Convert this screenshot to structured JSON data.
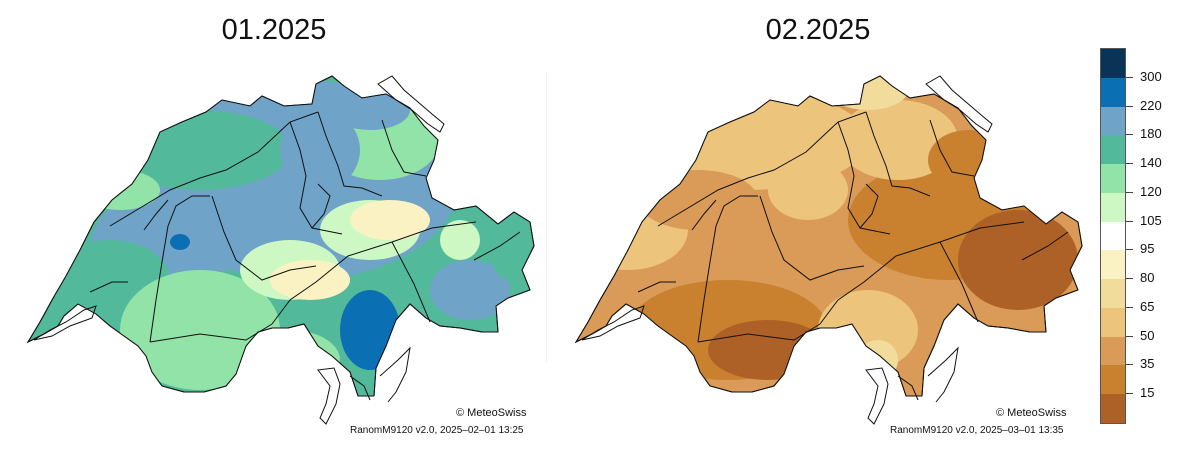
{
  "maps": [
    {
      "title": "01.2025",
      "credit": "© MeteoSwiss",
      "model": "RanomM9120 v2.0, 2025–02–01 13:25",
      "scheme": "wet"
    },
    {
      "title": "02.2025",
      "credit": "© MeteoSwiss",
      "model": "RanomM9120 v2.0, 2025–03–01 13:35",
      "scheme": "dry"
    }
  ],
  "legend": {
    "labels": [
      "300",
      "220",
      "180",
      "140",
      "120",
      "105",
      "95",
      "80",
      "65",
      "50",
      "35",
      "15"
    ],
    "colors": [
      "#0a3358",
      "#0b6fb3",
      "#6fa4c8",
      "#53b99b",
      "#91e3a8",
      "#cdf8c4",
      "#ffffff",
      "#fbf2c3",
      "#f2dc9c",
      "#edc47c",
      "#d99b57",
      "#c9812f",
      "#ad6127"
    ]
  },
  "colors": {
    "wet": [
      "#6fa4c8",
      "#53b99b",
      "#91e3a8",
      "#cdf8c4",
      "#fbf2c3",
      "#0b6fb3"
    ],
    "dry": [
      "#d99b57",
      "#edc47c",
      "#c9812f",
      "#ad6127",
      "#f2dc9c"
    ]
  }
}
